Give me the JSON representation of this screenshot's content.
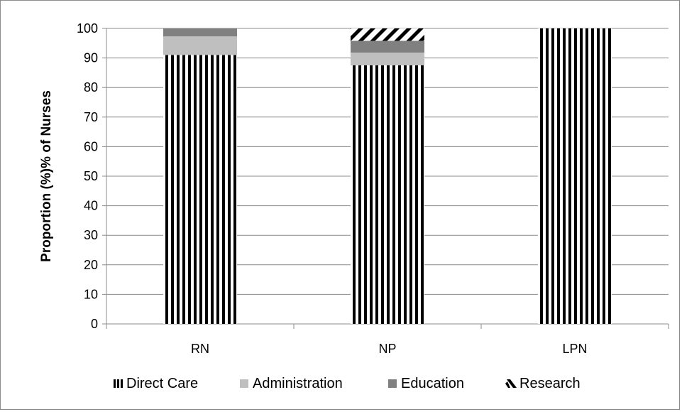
{
  "chart_data": {
    "type": "bar",
    "stacked": true,
    "title": "",
    "xlabel": "",
    "ylabel": "Proportion (%)% of Nurses",
    "ylim": [
      0,
      100
    ],
    "y_ticks": [
      0,
      10,
      20,
      30,
      40,
      50,
      60,
      70,
      80,
      90,
      100
    ],
    "grid": true,
    "legend_position": "bottom",
    "categories": [
      "RN",
      "NP",
      "LPN"
    ],
    "series": [
      {
        "name": "Direct Care",
        "values": [
          91,
          87.5,
          100
        ],
        "pattern": "vertical-stripes",
        "color": "#000000"
      },
      {
        "name": "Administration",
        "values": [
          6.3,
          4.3,
          0
        ],
        "pattern": "solid",
        "color": "#bfbfbf"
      },
      {
        "name": "Education",
        "values": [
          2.7,
          4.0,
          0
        ],
        "pattern": "solid",
        "color": "#808080"
      },
      {
        "name": "Research",
        "values": [
          0,
          4.2,
          0
        ],
        "pattern": "diagonal-stripes",
        "color": "#000000"
      }
    ]
  }
}
